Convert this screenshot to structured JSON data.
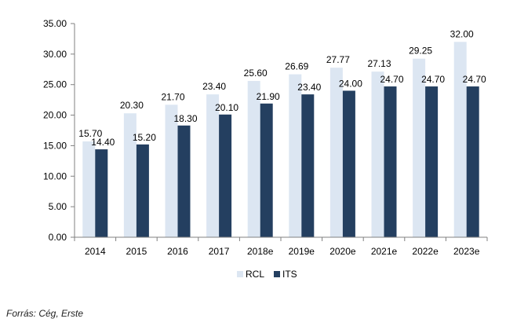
{
  "chart_data": {
    "type": "bar",
    "categories": [
      "2014",
      "2015",
      "2016",
      "2017",
      "2018e",
      "2019e",
      "2020e",
      "2021e",
      "2022e",
      "2023e"
    ],
    "series": [
      {
        "name": "RCL",
        "color": "#dce6f2",
        "values": [
          15.7,
          20.3,
          21.7,
          23.4,
          25.6,
          26.69,
          27.77,
          27.13,
          29.25,
          32.0
        ],
        "labels": [
          "15.70",
          "20.30",
          "21.70",
          "23.40",
          "25.60",
          "26.69",
          "27.77",
          "27.13",
          "29.25",
          "32.00"
        ]
      },
      {
        "name": "ITS",
        "color": "#243f60",
        "values": [
          14.4,
          15.2,
          18.3,
          20.1,
          21.9,
          23.4,
          24.0,
          24.7,
          24.7,
          24.7
        ],
        "labels": [
          "14.40",
          "15.20",
          "18.30",
          "20.10",
          "21.90",
          "23.40",
          "24.00",
          "24.70",
          "24.70",
          "24.70"
        ]
      }
    ],
    "ylim": [
      0,
      35
    ],
    "yticks": [
      "0.00",
      "5.00",
      "10.00",
      "15.00",
      "20.00",
      "25.00",
      "30.00",
      "35.00"
    ],
    "legend_position": "bottom",
    "grid": false
  },
  "source": "Forrás: Cég, Erste"
}
